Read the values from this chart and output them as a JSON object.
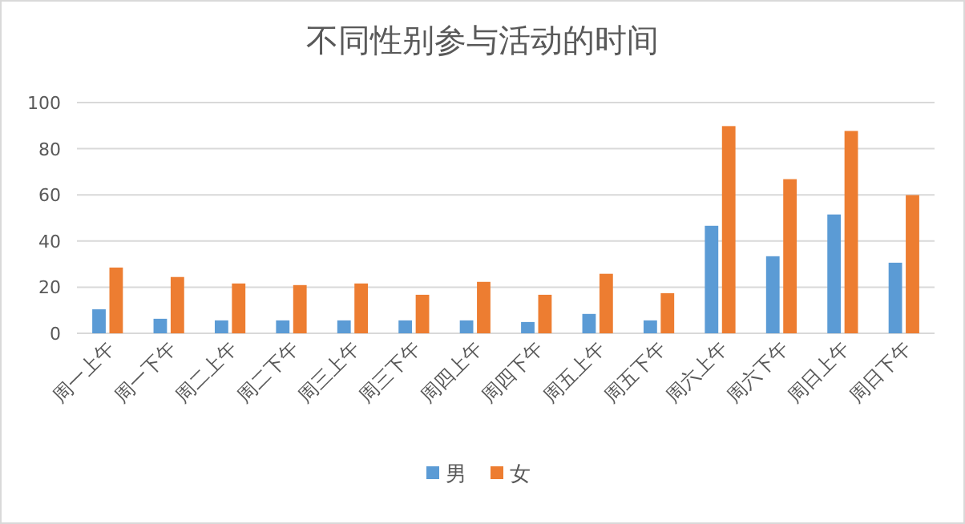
{
  "chart_data": {
    "type": "bar",
    "title": "不同性别参与活动的时间",
    "categories": [
      "周一上午",
      "周一下午",
      "周二上午",
      "周二下午",
      "周三上午",
      "周三下午",
      "周四上午",
      "周四下午",
      "周五上午",
      "周五下午",
      "周六上午",
      "周六下午",
      "周日上午",
      "周日下午"
    ],
    "series": [
      {
        "name": "男",
        "color": "#5b9bd5",
        "values": [
          10.4,
          6.3,
          5.6,
          5.6,
          5.6,
          5.6,
          5.6,
          4.9,
          8.4,
          5.6,
          46.6,
          33.4,
          51.5,
          30.6
        ]
      },
      {
        "name": "女",
        "color": "#ed7d31",
        "values": [
          28.5,
          24.4,
          21.6,
          20.9,
          21.6,
          16.7,
          22.3,
          16.7,
          25.8,
          17.4,
          89.8,
          66.8,
          87.7,
          59.9
        ]
      }
    ],
    "ylim": [
      0,
      100
    ],
    "yticks": [
      0,
      20,
      40,
      60,
      80,
      100
    ],
    "grid": "y",
    "legend": "bottom"
  }
}
